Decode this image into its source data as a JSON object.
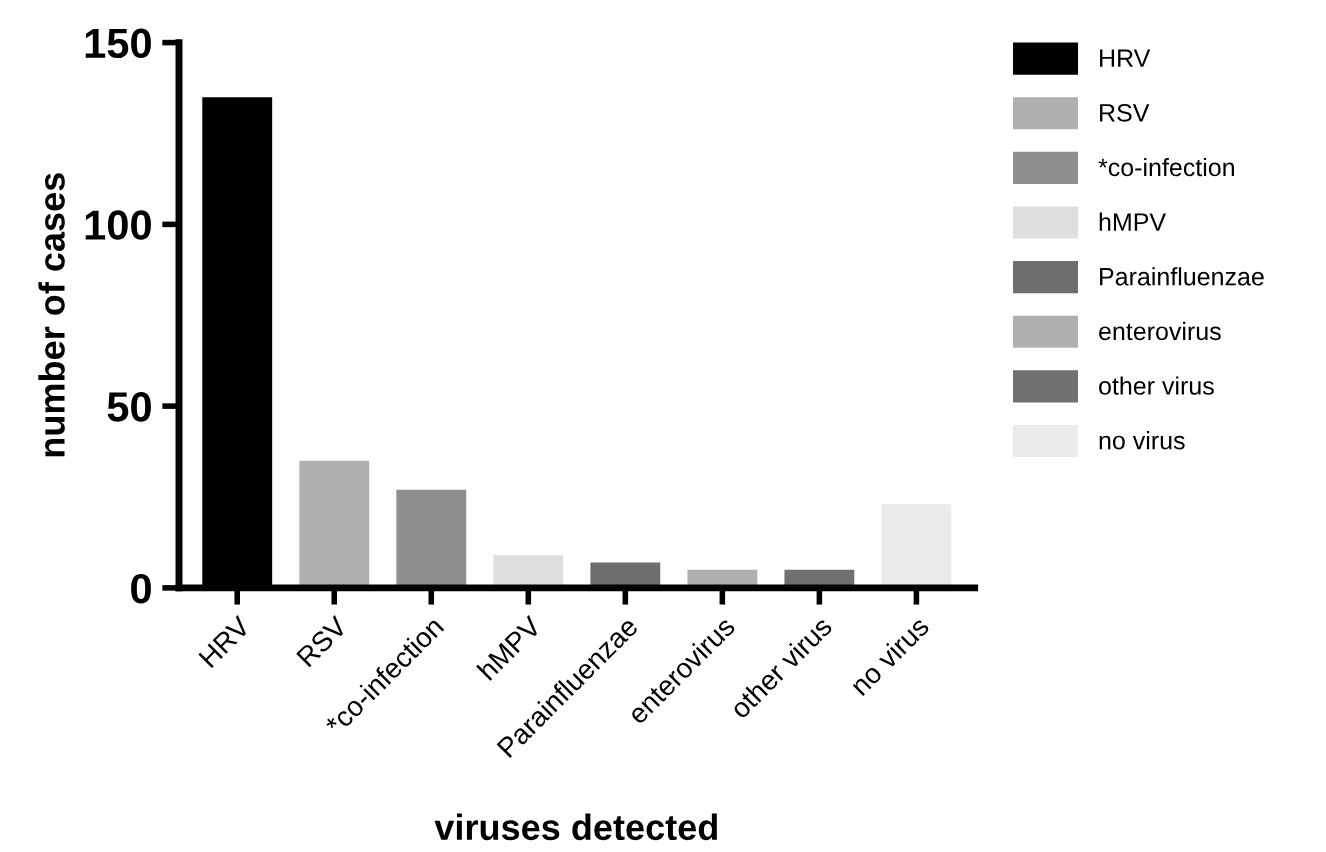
{
  "chart_data": {
    "type": "bar",
    "xlabel": "viruses detected",
    "ylabel": "number of cases",
    "categories": [
      "HRV",
      "RSV",
      "*co-infection",
      "hMPV",
      "Parainfluenzae",
      "enterovirus",
      "other virus",
      "no virus"
    ],
    "series": [
      {
        "name": "HRV",
        "color": "#000000",
        "values": [
          135,
          null,
          null,
          null,
          null,
          null,
          null,
          null
        ]
      },
      {
        "name": "RSV",
        "color": "#b0b0b0",
        "values": [
          null,
          35,
          null,
          null,
          null,
          null,
          null,
          null
        ]
      },
      {
        "name": "*co-infection",
        "color": "#8e8e8e",
        "values": [
          null,
          null,
          27,
          null,
          null,
          null,
          null,
          null
        ]
      },
      {
        "name": "hMPV",
        "color": "#dedede",
        "values": [
          null,
          null,
          null,
          9,
          null,
          null,
          null,
          null
        ]
      },
      {
        "name": "Parainfluenzae",
        "color": "#6e6e6e",
        "values": [
          null,
          null,
          null,
          null,
          7,
          null,
          null,
          null
        ]
      },
      {
        "name": "enterovirus",
        "color": "#b0b0b0",
        "values": [
          null,
          null,
          null,
          null,
          null,
          5,
          null,
          null
        ]
      },
      {
        "name": "other virus",
        "color": "#707070",
        "values": [
          null,
          null,
          null,
          null,
          null,
          null,
          5,
          null
        ]
      },
      {
        "name": "no virus",
        "color": "#ebebeb",
        "values": [
          null,
          null,
          null,
          null,
          null,
          null,
          null,
          23
        ]
      }
    ],
    "ylim": [
      0,
      150
    ],
    "yticks": [
      0,
      50,
      100,
      150
    ],
    "grid": false,
    "legend": "right"
  }
}
